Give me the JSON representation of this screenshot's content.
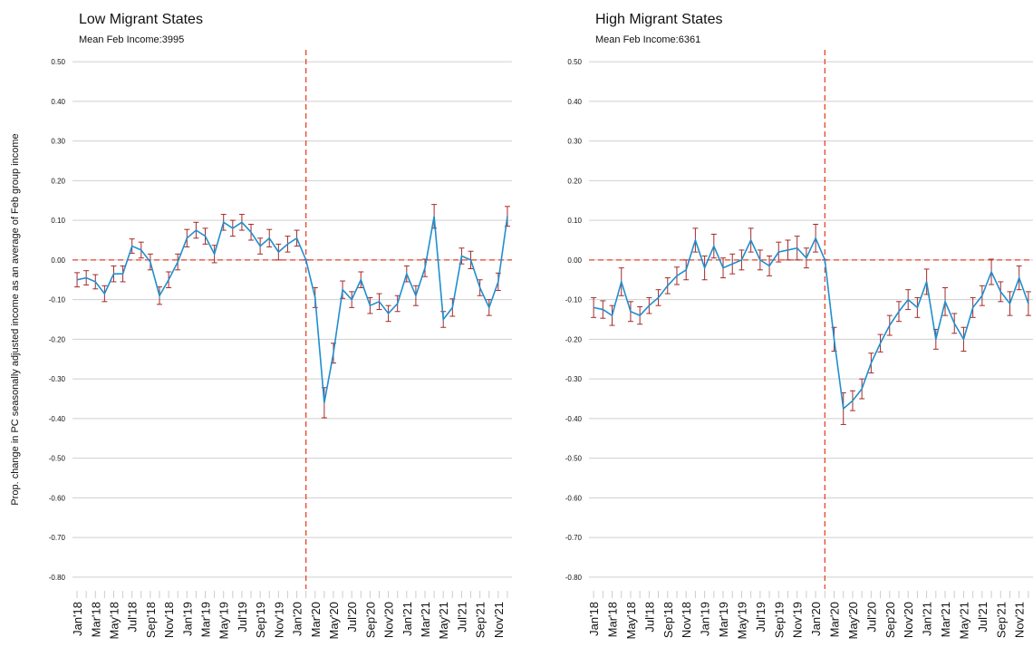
{
  "chart_data": [
    {
      "type": "line",
      "title": "Low Migrant States",
      "subtitle": "Mean Feb Income:3995",
      "y_label": "Prop. change in PC seasonally adjusted income as an average of Feb group income",
      "categories": [
        "Jan'18",
        null,
        "Mar'18",
        null,
        "May'18",
        null,
        "Jul'18",
        null,
        "Sep'18",
        null,
        "Nov'18",
        null,
        "Jan'19",
        null,
        "Mar'19",
        null,
        "May'19",
        null,
        "Jul'19",
        null,
        "Sep'19",
        null,
        "Nov'19",
        null,
        "Jan'20",
        null,
        "Mar'20",
        null,
        "May'20",
        null,
        "Jul'20",
        null,
        "Sep'20",
        null,
        "Nov'20",
        null,
        "Jan'21",
        null,
        "Mar'21",
        null,
        "May'21",
        null,
        "Jul'21",
        null,
        "Sep'21",
        null,
        "Nov'21",
        null
      ],
      "series": [
        {
          "color": "#1f8fcf",
          "error_color": "#a52a2a",
          "values": [
            -0.05,
            -0.045,
            -0.055,
            -0.085,
            -0.035,
            -0.035,
            0.035,
            0.025,
            -0.005,
            -0.09,
            -0.05,
            -0.005,
            0.055,
            0.075,
            0.06,
            0.015,
            0.095,
            0.08,
            0.095,
            0.07,
            0.035,
            0.055,
            0.02,
            0.04,
            0.055,
            0.0,
            -0.095,
            -0.36,
            -0.235,
            -0.075,
            -0.1,
            -0.05,
            -0.115,
            -0.105,
            -0.135,
            -0.11,
            -0.035,
            -0.09,
            -0.02,
            0.11,
            -0.15,
            -0.12,
            0.01,
            0.0,
            -0.07,
            -0.12,
            -0.055,
            0.11
          ],
          "errors": [
            0.018,
            0.018,
            0.018,
            0.02,
            0.02,
            0.02,
            0.018,
            0.02,
            0.02,
            0.022,
            0.02,
            0.02,
            0.022,
            0.02,
            0.02,
            0.022,
            0.02,
            0.02,
            0.02,
            0.02,
            0.02,
            0.022,
            0.02,
            0.02,
            0.02,
            0.0,
            0.025,
            0.038,
            0.025,
            0.022,
            0.02,
            0.02,
            0.02,
            0.02,
            0.02,
            0.02,
            0.02,
            0.025,
            0.022,
            0.03,
            0.02,
            0.022,
            0.02,
            0.022,
            0.02,
            0.02,
            0.022,
            0.025
          ]
        }
      ],
      "ylim": [
        -0.83,
        0.53
      ],
      "yticks": [
        {
          "value": 0.5,
          "label": "0.50"
        },
        {
          "value": 0.4,
          "label": "0.40"
        },
        {
          "value": 0.3,
          "label": "0.30"
        },
        {
          "value": 0.2,
          "label": "0.20"
        },
        {
          "value": 0.1,
          "label": "0.10"
        },
        {
          "value": 0,
          "label": "0.00"
        },
        {
          "value": -0.1,
          "label": "-0.10"
        },
        {
          "value": -0.2,
          "label": "-0.20"
        },
        {
          "value": -0.3,
          "label": "-0.30"
        },
        {
          "value": -0.4,
          "label": "-0.40"
        },
        {
          "value": -0.5,
          "label": "-0.50"
        },
        {
          "value": -0.6,
          "label": "-0.60"
        },
        {
          "value": -0.7,
          "label": "-0.70"
        },
        {
          "value": -0.8,
          "label": "-0.80"
        }
      ],
      "grid": true,
      "hline": 0,
      "vline_index": 25,
      "ref_color": "#e8442a"
    },
    {
      "type": "line",
      "title": "High Migrant States",
      "subtitle": "Mean Feb Income:6361",
      "categories": [
        "Jan'18",
        null,
        "Mar'18",
        null,
        "May'18",
        null,
        "Jul'18",
        null,
        "Sep'18",
        null,
        "Nov'18",
        null,
        "Jan'19",
        null,
        "Mar'19",
        null,
        "May'19",
        null,
        "Jul'19",
        null,
        "Sep'19",
        null,
        "Nov'19",
        null,
        "Jan'20",
        null,
        "Mar'20",
        null,
        "May'20",
        null,
        "Jul'20",
        null,
        "Sep'20",
        null,
        "Nov'20",
        null,
        "Jan'21",
        null,
        "Mar'21",
        null,
        "May'21",
        null,
        "Jul'21",
        null,
        "Sep'21",
        null,
        "Nov'21",
        null
      ],
      "series": [
        {
          "color": "#1f8fcf",
          "error_color": "#a52a2a",
          "values": [
            -0.12,
            -0.125,
            -0.14,
            -0.055,
            -0.13,
            -0.14,
            -0.115,
            -0.095,
            -0.065,
            -0.04,
            -0.025,
            0.05,
            -0.02,
            0.035,
            -0.02,
            -0.01,
            0.0,
            0.05,
            0.0,
            -0.015,
            0.02,
            0.025,
            0.03,
            0.005,
            0.055,
            0.0,
            -0.2,
            -0.375,
            -0.355,
            -0.325,
            -0.26,
            -0.21,
            -0.165,
            -0.13,
            -0.1,
            -0.12,
            -0.055,
            -0.2,
            -0.105,
            -0.16,
            -0.2,
            -0.12,
            -0.09,
            -0.03,
            -0.08,
            -0.11,
            -0.045,
            -0.11
          ],
          "errors": [
            0.025,
            0.022,
            0.025,
            0.035,
            0.025,
            0.022,
            0.02,
            0.02,
            0.02,
            0.022,
            0.025,
            0.03,
            0.03,
            0.03,
            0.025,
            0.025,
            0.025,
            0.03,
            0.025,
            0.025,
            0.025,
            0.025,
            0.03,
            0.025,
            0.035,
            0.0,
            0.03,
            0.04,
            0.025,
            0.025,
            0.025,
            0.022,
            0.025,
            0.025,
            0.025,
            0.025,
            0.032,
            0.025,
            0.035,
            0.025,
            0.03,
            0.025,
            0.025,
            0.032,
            0.025,
            0.03,
            0.03,
            0.03
          ]
        }
      ],
      "ylim": [
        -0.83,
        0.53
      ],
      "yticks": [
        {
          "value": 0.5,
          "label": "0.50"
        },
        {
          "value": 0.4,
          "label": "0.40"
        },
        {
          "value": 0.3,
          "label": "0.30"
        },
        {
          "value": 0.2,
          "label": "0.20"
        },
        {
          "value": 0.1,
          "label": "0.10"
        },
        {
          "value": 0,
          "label": "0.00"
        },
        {
          "value": -0.1,
          "label": "-0.10"
        },
        {
          "value": -0.2,
          "label": "-0.20"
        },
        {
          "value": -0.3,
          "label": "-0.30"
        },
        {
          "value": -0.4,
          "label": "-0.40"
        },
        {
          "value": -0.5,
          "label": "-0.50"
        },
        {
          "value": -0.6,
          "label": "-0.60"
        },
        {
          "value": -0.7,
          "label": "-0.70"
        },
        {
          "value": -0.8,
          "label": "-0.80"
        }
      ],
      "grid": true,
      "hline": 0,
      "vline_index": 25,
      "ref_color": "#e8442a"
    }
  ]
}
